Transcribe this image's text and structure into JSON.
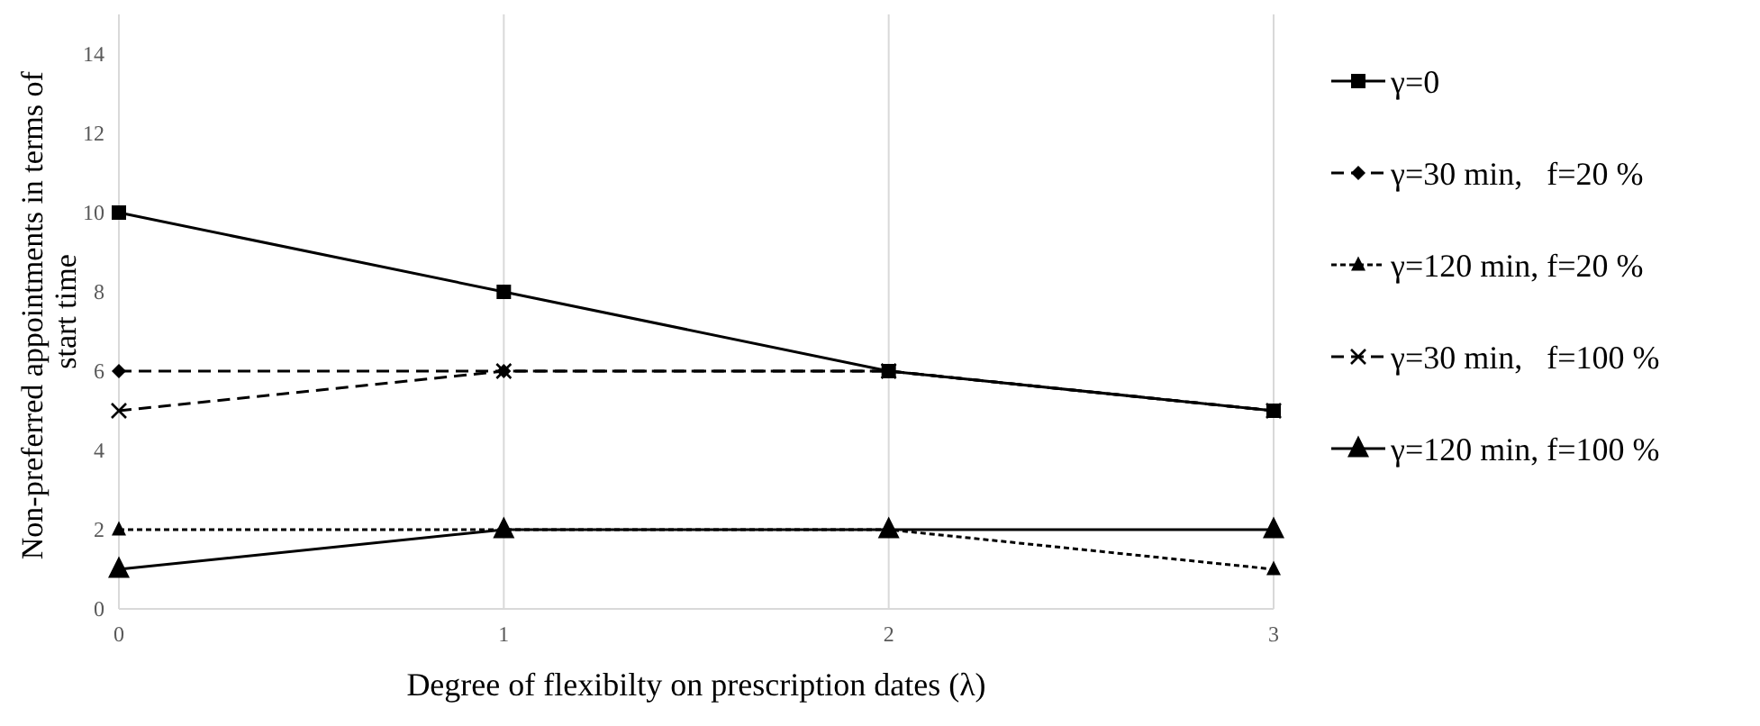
{
  "chart_data": {
    "type": "line",
    "xlabel": "Degree of  flexibilty on prescription dates (λ)",
    "ylabel": "Non-preferred appointments in terms of  start time",
    "x": [
      0,
      1,
      2,
      3
    ],
    "xlim": [
      0,
      3
    ],
    "xticks": [
      0,
      1,
      2,
      3
    ],
    "ylim": [
      0,
      15
    ],
    "yticks": [
      0,
      2,
      4,
      6,
      8,
      10,
      12,
      14
    ],
    "grid": "x",
    "legend": "right",
    "series": [
      {
        "name": "γ=0",
        "color": "#000000",
        "values": [
          10,
          8,
          6,
          5
        ],
        "marker": "square",
        "line_style": "solid"
      },
      {
        "name": "γ=30 min,   f=20 %",
        "color": "#000000",
        "values": [
          6,
          6,
          6,
          5
        ],
        "marker": "diamond",
        "line_style": "dashed"
      },
      {
        "name": "γ=120 min, f=20 %",
        "color": "#000000",
        "values": [
          2,
          2,
          2,
          1
        ],
        "marker": "triangle",
        "line_style": "dotted"
      },
      {
        "name": "γ=30 min,   f=100 %",
        "color": "#000000",
        "values": [
          5,
          6,
          6,
          5
        ],
        "marker": "cross",
        "line_style": "dashed"
      },
      {
        "name": "γ=120 min, f=100 %",
        "color": "#000000",
        "values": [
          1,
          2,
          2,
          2
        ],
        "marker": "triangle",
        "line_style": "solid"
      }
    ]
  }
}
